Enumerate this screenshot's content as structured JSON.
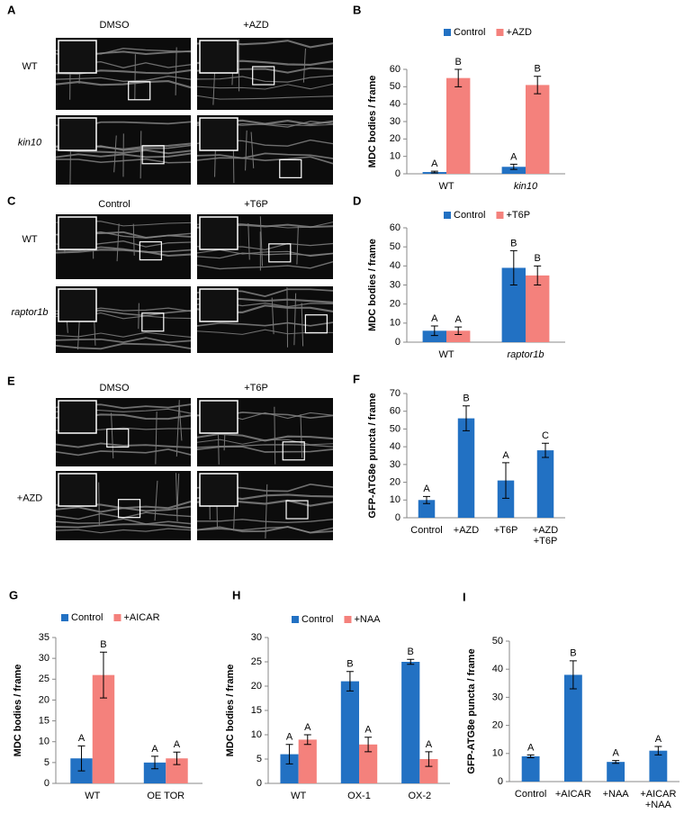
{
  "panels": [
    {
      "label": "A",
      "columns": [
        "DMSO",
        "+AZD"
      ],
      "rows": [
        "WT",
        "kin10"
      ]
    },
    {
      "label": "C",
      "columns": [
        "Control",
        "+T6P"
      ],
      "rows": [
        "WT",
        "raptor1b"
      ]
    },
    {
      "label": "E",
      "columns": [
        "DMSO",
        "+T6P"
      ],
      "rows": [
        "+AZD"
      ]
    }
  ],
  "chart_data": [
    {
      "type": "bar",
      "label": "B",
      "y_label": "MDC bodies / frame",
      "categories": [
        "WT",
        "kin10"
      ],
      "series": [
        {
          "name": "Control",
          "color": "#2271c3",
          "values": [
            1,
            4
          ],
          "errors": [
            0.5,
            1.5
          ],
          "letters": [
            "A",
            "A"
          ]
        },
        {
          "name": "+AZD",
          "color": "#f4817c",
          "values": [
            55,
            51
          ],
          "errors": [
            5,
            5
          ],
          "letters": [
            "B",
            "B"
          ]
        }
      ],
      "ylim": [
        0,
        60
      ],
      "yticks": [
        0,
        10,
        20,
        30,
        40,
        50,
        60
      ]
    },
    {
      "type": "bar",
      "label": "D",
      "y_label": "MDC bodies / frame",
      "categories": [
        "WT",
        "raptor1b"
      ],
      "series": [
        {
          "name": "Control",
          "color": "#2271c3",
          "values": [
            6,
            39
          ],
          "errors": [
            2.5,
            9
          ],
          "letters": [
            "A",
            "B"
          ]
        },
        {
          "name": "+T6P",
          "color": "#f4817c",
          "values": [
            6,
            35
          ],
          "errors": [
            2,
            5
          ],
          "letters": [
            "A",
            "B"
          ]
        }
      ],
      "ylim": [
        0,
        60
      ],
      "yticks": [
        0,
        10,
        20,
        30,
        40,
        50,
        60
      ]
    },
    {
      "type": "bar",
      "label": "F",
      "y_label": "GFP-ATG8e puncta / frame",
      "categories": [
        [
          "Control"
        ],
        [
          "+AZD"
        ],
        [
          "+T6P"
        ],
        [
          "+AZD",
          "+T6P"
        ]
      ],
      "series": [
        {
          "color": "#2271c3",
          "values": [
            10,
            56,
            21,
            38
          ],
          "errors": [
            2,
            7,
            10,
            4
          ],
          "letters": [
            "A",
            "B",
            "A",
            "C"
          ]
        }
      ],
      "ylim": [
        0,
        70
      ],
      "yticks": [
        0,
        10,
        20,
        30,
        40,
        50,
        60,
        70
      ]
    },
    {
      "type": "bar",
      "label": "G",
      "y_label": "MDC bodies / frame",
      "categories": [
        "WT",
        "OE TOR"
      ],
      "series": [
        {
          "name": "Control",
          "color": "#2271c3",
          "values": [
            6,
            5
          ],
          "errors": [
            3,
            1.5
          ],
          "letters": [
            "A",
            "A"
          ]
        },
        {
          "name": "+AICAR",
          "color": "#f4817c",
          "values": [
            26,
            6
          ],
          "errors": [
            5.5,
            1.5
          ],
          "letters": [
            "B",
            "A"
          ]
        }
      ],
      "ylim": [
        0,
        35
      ],
      "yticks": [
        0,
        5,
        10,
        15,
        20,
        25,
        30,
        35
      ]
    },
    {
      "type": "bar",
      "label": "H",
      "y_label": "MDC bodies / frame",
      "categories": [
        "WT",
        "OX-1",
        "OX-2"
      ],
      "series": [
        {
          "name": "Control",
          "color": "#2271c3",
          "values": [
            6,
            21,
            25
          ],
          "errors": [
            2,
            2,
            0.5
          ],
          "letters": [
            "A",
            "B",
            "B"
          ]
        },
        {
          "name": "+NAA",
          "color": "#f4817c",
          "values": [
            9,
            8,
            5
          ],
          "errors": [
            1,
            1.5,
            1.5
          ],
          "letters": [
            "A",
            "A",
            "A"
          ]
        }
      ],
      "ylim": [
        0,
        30
      ],
      "yticks": [
        0,
        5,
        10,
        15,
        20,
        25,
        30
      ]
    },
    {
      "type": "bar",
      "label": "I",
      "y_label": "GFP-ATG8e puncta / frame",
      "categories": [
        [
          "Control"
        ],
        [
          "+AICAR"
        ],
        [
          "+NAA"
        ],
        [
          "+AICAR",
          "+NAA"
        ]
      ],
      "series": [
        {
          "color": "#2271c3",
          "values": [
            9,
            38,
            7,
            11
          ],
          "errors": [
            0.5,
            5,
            0.5,
            1.5
          ],
          "letters": [
            "A",
            "B",
            "A",
            "A"
          ]
        }
      ],
      "ylim": [
        0,
        50
      ],
      "yticks": [
        0,
        10,
        20,
        30,
        40,
        50
      ]
    }
  ]
}
